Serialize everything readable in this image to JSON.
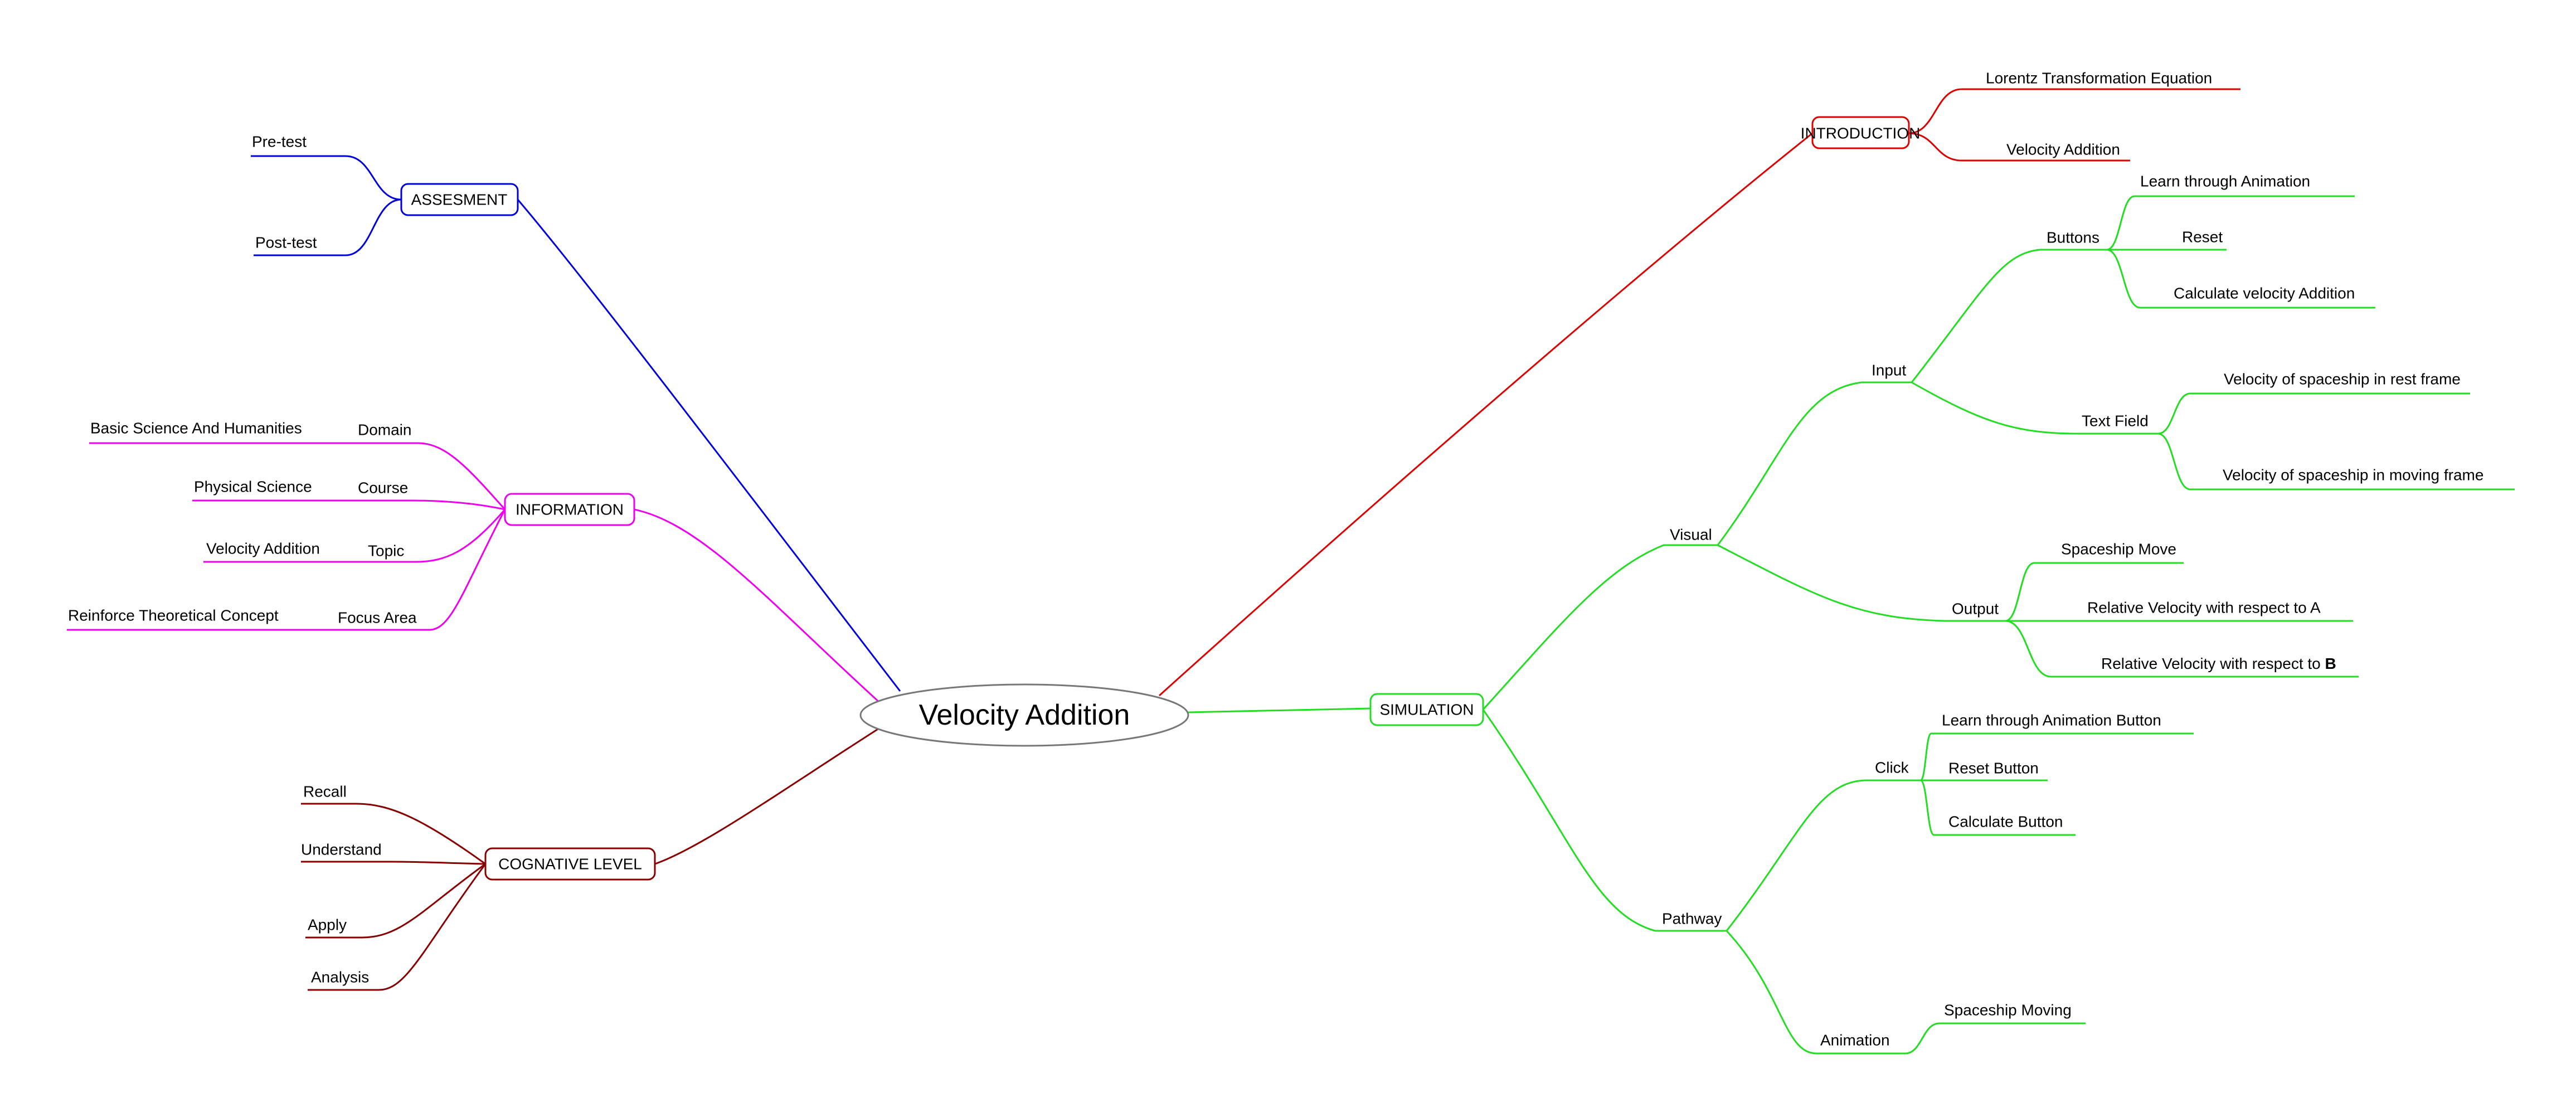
{
  "colors": {
    "introduction": "#dd0000",
    "simulation": "#22dd22",
    "assesment": "#0000dd",
    "information": "#ee00ee",
    "cognative": "#880000",
    "center_border": "#777777"
  },
  "center": {
    "label": "Velocity Addition"
  },
  "introduction": {
    "label": "INTRODUCTION",
    "items": [
      "Lorentz Transformation Equation",
      "Velocity Addition"
    ]
  },
  "simulation": {
    "label": "SIMULATION",
    "visual": {
      "label": "Visual",
      "input": {
        "label": "Input",
        "buttons": {
          "label": "Buttons",
          "items": [
            "Learn through Animation",
            "Reset",
            "Calculate velocity Addition"
          ]
        },
        "text_field": {
          "label": "Text Field",
          "items": [
            "Velocity of spaceship in rest frame",
            "Velocity of spaceship in moving frame"
          ]
        }
      },
      "output": {
        "label": "Output",
        "items": [
          "Spaceship Move",
          "Relative Velocity with respect to A"
        ],
        "last_item_prefix": "Relative Velocity with respect to ",
        "last_item_bold": "B"
      }
    },
    "pathway": {
      "label": "Pathway",
      "click": {
        "label": "Click",
        "items": [
          "Learn through Animation Button",
          "Reset Button",
          "Calculate Button"
        ]
      },
      "animation": {
        "label": "Animation",
        "items": [
          "Spaceship Moving"
        ]
      }
    }
  },
  "assesment": {
    "label": "ASSESMENT",
    "items": [
      "Pre-test",
      "Post-test"
    ]
  },
  "information": {
    "label": "INFORMATION",
    "rows": [
      {
        "key": "Domain",
        "value": "Basic Science And Humanities"
      },
      {
        "key": "Course",
        "value": "Physical Science"
      },
      {
        "key": "Topic",
        "value": "Velocity Addition"
      },
      {
        "key": "Focus Area",
        "value": "Reinforce Theoretical Concept"
      }
    ]
  },
  "cognative": {
    "label": "COGNATIVE LEVEL",
    "items": [
      "Recall",
      "Understand",
      "Apply",
      "Analysis"
    ]
  }
}
